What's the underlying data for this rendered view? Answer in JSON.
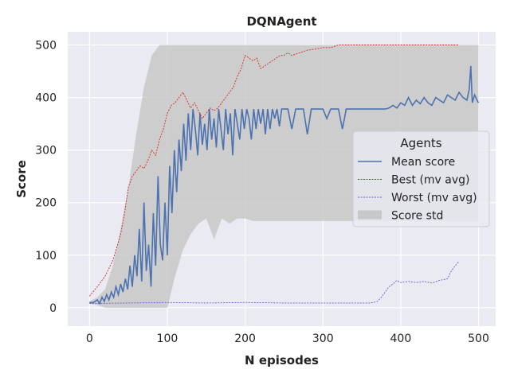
{
  "chart_data": {
    "type": "line",
    "title": "DQNAgent",
    "xlabel": "N episodes",
    "ylabel": "Score",
    "xlim": [
      -28,
      522
    ],
    "ylim": [
      -35,
      525
    ],
    "xticks": [
      0,
      100,
      200,
      300,
      400,
      500
    ],
    "yticks": [
      0,
      100,
      200,
      300,
      400,
      500
    ],
    "grid": true,
    "legend": {
      "title": "Agents",
      "placement": "center-right",
      "entries": [
        "Mean score",
        "Best (mv avg)",
        "Worst (mv avg)",
        "Score std"
      ]
    },
    "colors": {
      "background": "#EAEAF2",
      "mean": "#4C72B0",
      "best": "#D62728",
      "worst": "#6A5ACD",
      "std": "#C8C8C8"
    },
    "series": [
      {
        "name": "Mean score",
        "style": "solid",
        "x": [
          0,
          5,
          10,
          13,
          16,
          19,
          22,
          25,
          28,
          31,
          34,
          37,
          40,
          43,
          46,
          49,
          52,
          55,
          58,
          61,
          64,
          67,
          70,
          73,
          76,
          79,
          82,
          85,
          88,
          91,
          94,
          97,
          100,
          103,
          106,
          109,
          112,
          115,
          118,
          121,
          124,
          127,
          130,
          133,
          136,
          139,
          142,
          145,
          148,
          151,
          154,
          157,
          160,
          163,
          166,
          169,
          172,
          175,
          178,
          181,
          184,
          187,
          190,
          193,
          196,
          199,
          202,
          205,
          208,
          211,
          214,
          217,
          220,
          223,
          226,
          229,
          232,
          235,
          238,
          241,
          244,
          247,
          250,
          255,
          260,
          265,
          270,
          275,
          280,
          285,
          290,
          295,
          300,
          305,
          310,
          315,
          320,
          325,
          330,
          335,
          340,
          345,
          350,
          355,
          360,
          365,
          370,
          375,
          380,
          385,
          390,
          395,
          400,
          405,
          410,
          415,
          420,
          425,
          430,
          435,
          440,
          445,
          450,
          455,
          460,
          465,
          470,
          475,
          480,
          485,
          488,
          490,
          492,
          495,
          498,
          500
        ],
        "y": [
          10,
          10,
          15,
          8,
          20,
          12,
          25,
          15,
          30,
          20,
          40,
          25,
          45,
          30,
          55,
          35,
          80,
          40,
          100,
          60,
          150,
          50,
          200,
          70,
          120,
          40,
          180,
          80,
          250,
          120,
          90,
          200,
          100,
          270,
          180,
          300,
          220,
          320,
          260,
          350,
          280,
          370,
          300,
          378,
          340,
          290,
          370,
          310,
          350,
          300,
          378,
          320,
          360,
          305,
          378,
          340,
          300,
          378,
          330,
          370,
          290,
          378,
          350,
          320,
          378,
          340,
          378,
          360,
          320,
          378,
          340,
          378,
          350,
          378,
          330,
          378,
          340,
          378,
          360,
          378,
          345,
          378,
          378,
          378,
          340,
          378,
          378,
          378,
          330,
          378,
          378,
          378,
          378,
          360,
          378,
          378,
          378,
          340,
          378,
          378,
          378,
          378,
          378,
          378,
          378,
          378,
          378,
          378,
          378,
          380,
          385,
          380,
          390,
          385,
          400,
          385,
          395,
          388,
          400,
          390,
          385,
          400,
          395,
          390,
          405,
          400,
          395,
          410,
          400,
          395,
          415,
          460,
          390,
          405,
          395,
          390
        ]
      },
      {
        "name": "Best (mv avg)",
        "style": "dashed",
        "x": [
          0,
          10,
          20,
          30,
          40,
          45,
          50,
          55,
          60,
          65,
          70,
          75,
          80,
          85,
          90,
          95,
          100,
          105,
          110,
          115,
          120,
          125,
          130,
          135,
          140,
          145,
          150,
          155,
          160,
          165,
          170,
          175,
          180,
          185,
          190,
          195,
          200,
          205,
          210,
          215,
          220,
          225,
          230,
          235,
          240,
          245,
          250,
          255,
          260,
          270,
          280,
          290,
          300,
          310,
          320,
          330,
          340,
          350,
          400,
          450,
          475
        ],
        "y": [
          22,
          40,
          60,
          90,
          140,
          180,
          230,
          250,
          260,
          270,
          265,
          280,
          300,
          290,
          320,
          340,
          370,
          385,
          390,
          400,
          410,
          395,
          380,
          390,
          375,
          360,
          370,
          380,
          375,
          380,
          390,
          400,
          410,
          420,
          440,
          455,
          480,
          475,
          470,
          475,
          455,
          460,
          465,
          470,
          475,
          480,
          480,
          485,
          480,
          485,
          490,
          492,
          495,
          495,
          500,
          500,
          500,
          500,
          500,
          500,
          500
        ]
      },
      {
        "name": "Worst (mv avg)",
        "style": "dashed",
        "x": [
          0,
          50,
          100,
          150,
          200,
          250,
          300,
          350,
          360,
          365,
          370,
          375,
          380,
          385,
          390,
          395,
          400,
          410,
          420,
          430,
          440,
          450,
          460,
          465,
          470,
          475
        ],
        "y": [
          8,
          9,
          10,
          9,
          10,
          9,
          9,
          9,
          9,
          10,
          12,
          20,
          30,
          40,
          45,
          52,
          48,
          50,
          48,
          50,
          47,
          52,
          55,
          70,
          80,
          88
        ]
      },
      {
        "name": "Score std",
        "style": "band",
        "x": [
          0,
          10,
          20,
          30,
          40,
          50,
          60,
          70,
          80,
          90,
          100,
          110,
          120,
          130,
          140,
          150,
          160,
          170,
          180,
          190,
          200,
          210,
          220,
          230,
          240,
          250,
          300,
          350,
          380,
          400,
          450,
          500
        ],
        "upper": [
          12,
          20,
          35,
          80,
          150,
          230,
          330,
          420,
          480,
          500,
          500,
          500,
          500,
          500,
          500,
          500,
          500,
          500,
          500,
          500,
          500,
          500,
          500,
          500,
          500,
          500,
          500,
          500,
          500,
          500,
          500,
          500
        ],
        "lower": [
          8,
          5,
          0,
          0,
          0,
          0,
          0,
          0,
          0,
          0,
          0,
          60,
          110,
          140,
          160,
          170,
          130,
          170,
          160,
          170,
          170,
          165,
          165,
          165,
          165,
          165,
          165,
          165,
          165,
          165,
          165,
          165
        ]
      }
    ]
  }
}
